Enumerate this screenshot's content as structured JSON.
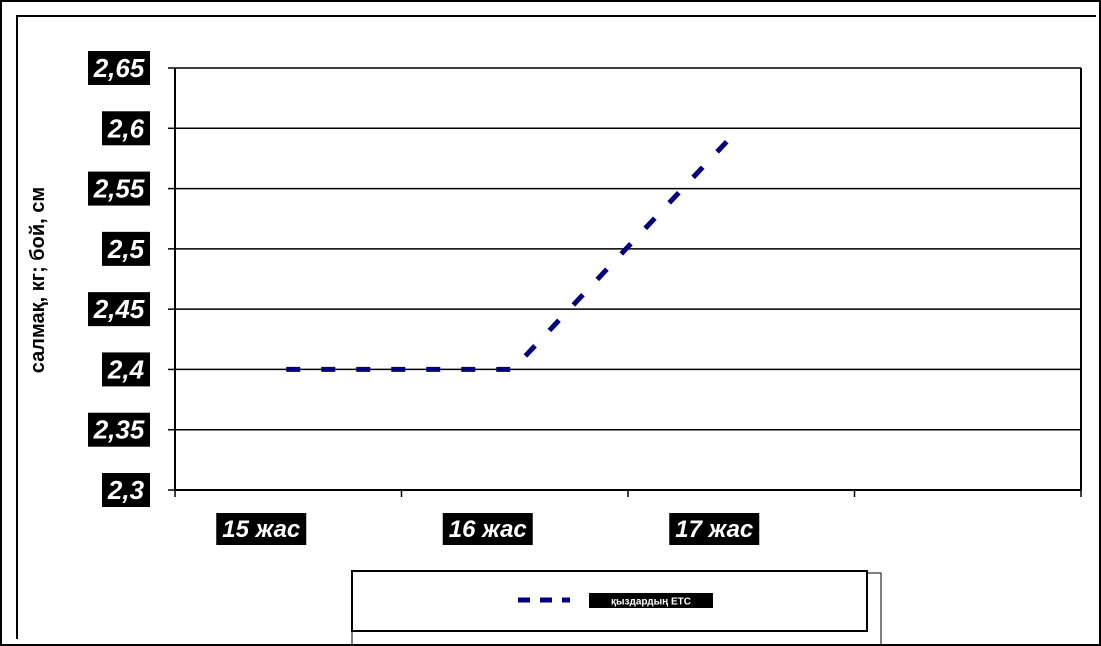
{
  "chart_data": {
    "type": "line",
    "title": "",
    "xlabel": "",
    "ylabel": "салмақ, кг; бой, см",
    "categories": [
      "15 жас",
      "16 жас",
      "17 жас"
    ],
    "series": [
      {
        "name": "қыздардың ЕТС",
        "values": [
          2.4,
          2.4,
          2.6
        ],
        "color": "#000080",
        "style": "dashed"
      }
    ],
    "ylim": [
      2.3,
      2.65
    ],
    "yticks": [
      "2,3",
      "2,35",
      "2,4",
      "2,45",
      "2,5",
      "2,55",
      "2,6",
      "2,65"
    ],
    "grid": true,
    "legend": "bottom"
  }
}
